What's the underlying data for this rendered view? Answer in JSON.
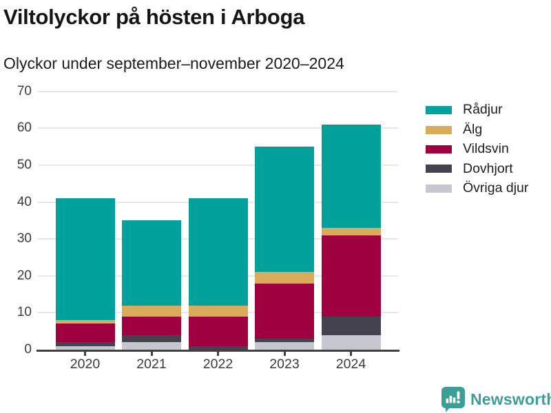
{
  "title": "Viltolyckor på hösten i Arboga",
  "subtitle": "Olyckor under september–november 2020–2024",
  "chart_data": {
    "type": "bar",
    "stacked": true,
    "title": "Viltolyckor på hösten i Arboga",
    "subtitle": "Olyckor under september–november 2020–2024",
    "categories": [
      "2020",
      "2021",
      "2022",
      "2023",
      "2024"
    ],
    "series": [
      {
        "name": "Rådjur",
        "color": "#00A19A",
        "values": [
          33,
          23,
          29,
          34,
          28
        ]
      },
      {
        "name": "Älg",
        "color": "#D8AC5B",
        "values": [
          1,
          3,
          3,
          3,
          2
        ]
      },
      {
        "name": "Vildsvin",
        "color": "#9E0040",
        "values": [
          5,
          5,
          8,
          15,
          22
        ]
      },
      {
        "name": "Dovhjort",
        "color": "#45424F",
        "values": [
          1,
          2,
          1,
          1,
          5
        ]
      },
      {
        "name": "Övriga djur",
        "color": "#C7C7D1",
        "values": [
          1,
          2,
          0,
          2,
          4
        ]
      }
    ],
    "totals": [
      41,
      35,
      41,
      55,
      61
    ],
    "stack_order_bottom_to_top": [
      "Övriga djur",
      "Dovhjort",
      "Vildsvin",
      "Älg",
      "Rådjur"
    ],
    "xlabel": "",
    "ylabel": "",
    "ylim": [
      0,
      70
    ],
    "yticks": [
      0,
      10,
      20,
      30,
      40,
      50,
      60,
      70
    ],
    "grid": true,
    "legend_position": "right"
  },
  "footer": {
    "brand": "Newsworthy",
    "brand_color": "#3D9E96"
  }
}
